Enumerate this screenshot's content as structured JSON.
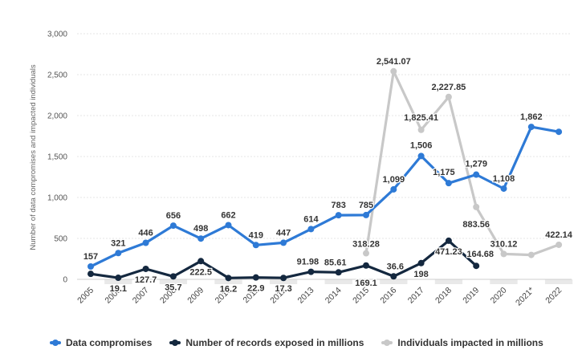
{
  "chart_data": {
    "type": "line",
    "title": "",
    "xlabel": "",
    "ylabel": "Number of data compromises and impacted individuals",
    "ylim": [
      0,
      3000
    ],
    "yticks": [
      0,
      500,
      1000,
      1500,
      2000,
      2500,
      3000
    ],
    "ytick_labels": [
      "0",
      "500",
      "1,000",
      "1,500",
      "2,000",
      "2,500",
      "3,000"
    ],
    "grid": true,
    "legend_position": "bottom",
    "categories": [
      "2005",
      "2006",
      "2007",
      "2008",
      "2009",
      "2010",
      "2011",
      "2012",
      "2013",
      "2014",
      "2015",
      "2016",
      "2017",
      "2018",
      "2019",
      "2020",
      "2021*",
      "2022"
    ],
    "series": [
      {
        "name": "Data compromises",
        "color": "#2e7ad6",
        "values": [
          157,
          321,
          446,
          656,
          498,
          662,
          419,
          447,
          614,
          783,
          785,
          1099,
          1506,
          1175,
          1279,
          1108,
          1862,
          1802
        ],
        "labels": [
          "157",
          "321",
          "446",
          "656",
          "498",
          "662",
          "419",
          "447",
          "614",
          "783",
          "785",
          "1,099",
          "1,506",
          "1,175",
          "1,279",
          "1,108",
          "1,862",
          ""
        ]
      },
      {
        "name": "Number of records exposed in millions",
        "color": "#14283f",
        "values": [
          66.9,
          19.1,
          127.7,
          35.7,
          222.5,
          16.2,
          22.9,
          17.3,
          91.98,
          85.61,
          169.1,
          36.6,
          198,
          471.23,
          164.68,
          null,
          null,
          null
        ],
        "labels": [
          "",
          "19.1",
          "127.7",
          "35.7",
          "222.5",
          "16.2",
          "22.9",
          "17.3",
          "91.98",
          "85.61",
          "169.1",
          "36.6",
          "198",
          "471.23",
          "164.68",
          "",
          "",
          ""
        ]
      },
      {
        "name": "Individuals impacted in millions",
        "color": "#c8c8c8",
        "values": [
          null,
          null,
          null,
          null,
          null,
          null,
          null,
          null,
          null,
          null,
          318.28,
          2541.07,
          1825.41,
          2227.85,
          883.56,
          310.12,
          298,
          422.14
        ],
        "labels": [
          "",
          "",
          "",
          "",
          "",
          "",
          "",
          "",
          "",
          "",
          "318.28",
          "2,541.07",
          "1,825.41",
          "2,227.85",
          "883.56",
          "310.12",
          "",
          "422.14"
        ]
      }
    ]
  }
}
